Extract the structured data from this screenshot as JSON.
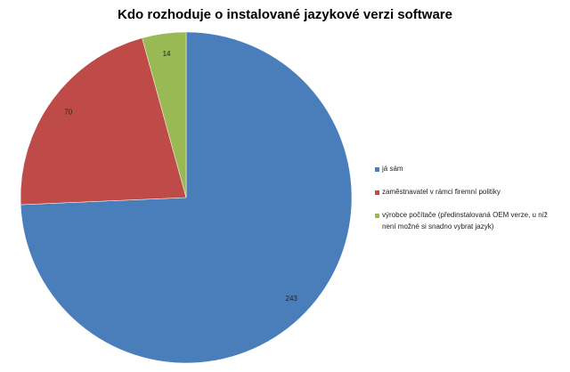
{
  "chart_data": {
    "type": "pie",
    "title": "Kdo rozhoduje o instalované jazykové verzi software",
    "categories": [
      "já sám",
      "zaměstnavatel v rámci firemní politiky",
      "výrobce počítače (předinstalovaná OEM verze, u níž není možné si snadno vybrat jazyk)"
    ],
    "values": [
      243,
      70,
      14
    ],
    "colors": [
      "#4a7ebb",
      "#be4b48",
      "#98b954"
    ],
    "legend": "right"
  }
}
